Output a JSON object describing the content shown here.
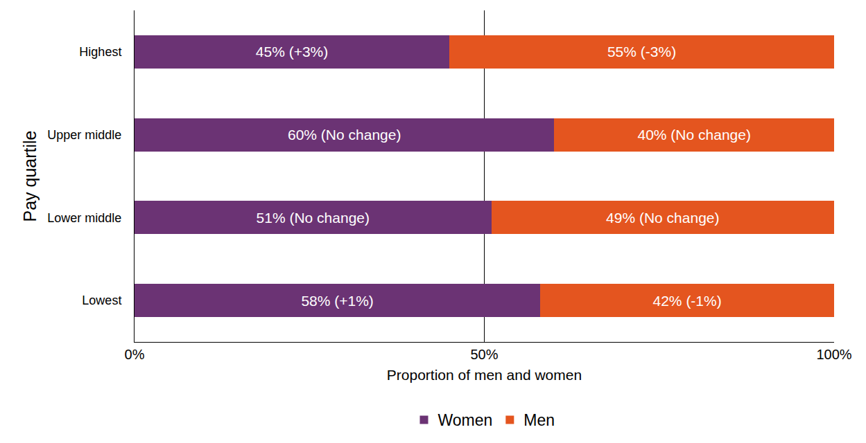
{
  "chart_data": {
    "type": "bar",
    "orientation": "horizontal",
    "stacked": true,
    "data_labels": true,
    "grid": true,
    "legend": "bottom",
    "x_label": "Proportion of men and women",
    "y_label": "Pay quartile",
    "categories": [
      "Lowest",
      "Lower middle",
      "Upper middle",
      "Highest"
    ],
    "series": [
      {
        "name": "Women",
        "color": "#6b3374",
        "values": [
          58,
          51,
          60,
          45
        ],
        "value_labels": [
          "58% (+1%)",
          "51% (No change)",
          "60% (No change)",
          "45% (+3%)"
        ]
      },
      {
        "name": "Men",
        "color": "#e4551f",
        "values": [
          42,
          49,
          40,
          55
        ],
        "value_labels": [
          "42% (-1%)",
          "49% (No change)",
          "40% (No change)",
          "55% (-3%)"
        ]
      }
    ],
    "xlim": [
      0,
      100
    ],
    "xticks": [
      {
        "value": 0,
        "label": "0%"
      },
      {
        "value": 50,
        "label": "50%"
      },
      {
        "value": 100,
        "label": "100%"
      }
    ]
  }
}
